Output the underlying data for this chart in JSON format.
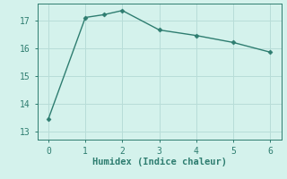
{
  "x": [
    0,
    1,
    1.5,
    2,
    3,
    4,
    5,
    6
  ],
  "y": [
    13.45,
    17.1,
    17.2,
    17.35,
    16.65,
    16.45,
    16.2,
    15.85
  ],
  "line_color": "#2e7d70",
  "marker": "D",
  "marker_size": 2.5,
  "bg_color": "#d4f2ec",
  "grid_color": "#b8ddd8",
  "xlabel": "Humidex (Indice chaleur)",
  "xlabel_fontsize": 7.5,
  "tick_fontsize": 7,
  "xlim": [
    -0.3,
    6.3
  ],
  "ylim": [
    12.7,
    17.6
  ],
  "yticks": [
    13,
    14,
    15,
    16,
    17
  ],
  "xticks": [
    0,
    1,
    2,
    3,
    4,
    5,
    6
  ]
}
